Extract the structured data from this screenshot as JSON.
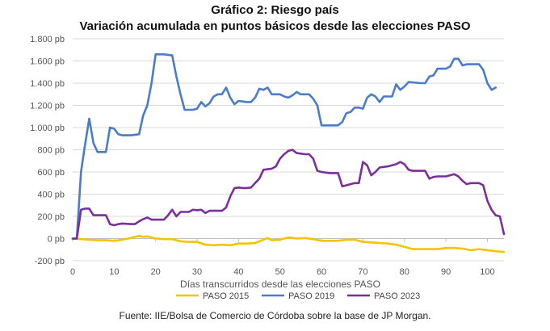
{
  "chart_data": {
    "type": "line",
    "title": "Gráfico 2: Riesgo país",
    "subtitle": "Variación acumulada en puntos básicos desde las elecciones PASO",
    "xlabel": "Días transcurridos desde las elecciones PASO",
    "ylabel": "",
    "xlim": [
      0,
      104
    ],
    "ylim": [
      -200,
      1800
    ],
    "x_ticks": [
      0,
      10,
      20,
      30,
      40,
      50,
      60,
      70,
      80,
      90,
      100
    ],
    "y_ticks": [
      -200,
      0,
      200,
      400,
      600,
      800,
      1000,
      1200,
      1400,
      1600,
      1800
    ],
    "y_tick_labels": [
      "-200 pb",
      "0 pb",
      "200 pb",
      "400 pb",
      "600 pb",
      "800 pb",
      "1.000 pb",
      "1.200 pb",
      "1.400 pb",
      "1.600 pb",
      "1.800 pb"
    ],
    "grid": true,
    "legend_position": "bottom",
    "series": [
      {
        "name": "PASO 2015",
        "color": "#f5c400",
        "points": [
          [
            0,
            0
          ],
          [
            2,
            -5
          ],
          [
            4,
            -10
          ],
          [
            6,
            -15
          ],
          [
            8,
            -15
          ],
          [
            10,
            -20
          ],
          [
            12,
            -10
          ],
          [
            14,
            5
          ],
          [
            16,
            25
          ],
          [
            17,
            15
          ],
          [
            18,
            20
          ],
          [
            20,
            0
          ],
          [
            22,
            -5
          ],
          [
            24,
            -5
          ],
          [
            26,
            -25
          ],
          [
            28,
            -30
          ],
          [
            30,
            -30
          ],
          [
            32,
            -55
          ],
          [
            34,
            -60
          ],
          [
            36,
            -55
          ],
          [
            38,
            -60
          ],
          [
            40,
            -45
          ],
          [
            42,
            -45
          ],
          [
            44,
            -40
          ],
          [
            46,
            -10
          ],
          [
            47,
            5
          ],
          [
            48,
            -15
          ],
          [
            50,
            -10
          ],
          [
            52,
            10
          ],
          [
            54,
            0
          ],
          [
            56,
            5
          ],
          [
            58,
            -5
          ],
          [
            60,
            -20
          ],
          [
            62,
            -20
          ],
          [
            64,
            -20
          ],
          [
            66,
            -10
          ],
          [
            68,
            -10
          ],
          [
            70,
            -30
          ],
          [
            72,
            -35
          ],
          [
            74,
            -40
          ],
          [
            76,
            -45
          ],
          [
            78,
            -55
          ],
          [
            80,
            -75
          ],
          [
            82,
            -95
          ],
          [
            84,
            -95
          ],
          [
            86,
            -95
          ],
          [
            88,
            -95
          ],
          [
            90,
            -85
          ],
          [
            92,
            -85
          ],
          [
            94,
            -90
          ],
          [
            96,
            -105
          ],
          [
            98,
            -95
          ],
          [
            100,
            -105
          ],
          [
            102,
            -115
          ],
          [
            104,
            -120
          ]
        ]
      },
      {
        "name": "PASO 2019",
        "color": "#4a7cc9",
        "points": [
          [
            0,
            0
          ],
          [
            1,
            0
          ],
          [
            2,
            600
          ],
          [
            3,
            850
          ],
          [
            4,
            1080
          ],
          [
            5,
            860
          ],
          [
            6,
            780
          ],
          [
            8,
            780
          ],
          [
            9,
            1000
          ],
          [
            10,
            990
          ],
          [
            11,
            940
          ],
          [
            12,
            930
          ],
          [
            14,
            930
          ],
          [
            16,
            940
          ],
          [
            17,
            1110
          ],
          [
            18,
            1200
          ],
          [
            19,
            1400
          ],
          [
            20,
            1660
          ],
          [
            22,
            1660
          ],
          [
            24,
            1650
          ],
          [
            25,
            1460
          ],
          [
            26,
            1300
          ],
          [
            27,
            1160
          ],
          [
            29,
            1160
          ],
          [
            30,
            1170
          ],
          [
            31,
            1230
          ],
          [
            32,
            1190
          ],
          [
            33,
            1220
          ],
          [
            34,
            1280
          ],
          [
            35,
            1300
          ],
          [
            36,
            1300
          ],
          [
            37,
            1360
          ],
          [
            38,
            1270
          ],
          [
            39,
            1210
          ],
          [
            40,
            1240
          ],
          [
            42,
            1230
          ],
          [
            43,
            1230
          ],
          [
            44,
            1270
          ],
          [
            45,
            1350
          ],
          [
            46,
            1340
          ],
          [
            47,
            1360
          ],
          [
            48,
            1300
          ],
          [
            50,
            1300
          ],
          [
            51,
            1280
          ],
          [
            52,
            1270
          ],
          [
            53,
            1290
          ],
          [
            54,
            1320
          ],
          [
            55,
            1300
          ],
          [
            57,
            1300
          ],
          [
            58,
            1260
          ],
          [
            59,
            1200
          ],
          [
            60,
            1020
          ],
          [
            63,
            1020
          ],
          [
            64,
            1020
          ],
          [
            65,
            1050
          ],
          [
            66,
            1130
          ],
          [
            67,
            1140
          ],
          [
            68,
            1180
          ],
          [
            69,
            1180
          ],
          [
            70,
            1170
          ],
          [
            71,
            1270
          ],
          [
            72,
            1300
          ],
          [
            73,
            1280
          ],
          [
            74,
            1230
          ],
          [
            75,
            1280
          ],
          [
            76,
            1280
          ],
          [
            77,
            1280
          ],
          [
            78,
            1390
          ],
          [
            79,
            1340
          ],
          [
            80,
            1370
          ],
          [
            81,
            1410
          ],
          [
            84,
            1400
          ],
          [
            85,
            1400
          ],
          [
            86,
            1460
          ],
          [
            87,
            1470
          ],
          [
            88,
            1530
          ],
          [
            90,
            1530
          ],
          [
            91,
            1550
          ],
          [
            92,
            1620
          ],
          [
            93,
            1620
          ],
          [
            94,
            1560
          ],
          [
            95,
            1570
          ],
          [
            97,
            1570
          ],
          [
            98,
            1570
          ],
          [
            99,
            1520
          ],
          [
            100,
            1400
          ],
          [
            101,
            1340
          ],
          [
            102,
            1360
          ]
        ]
      },
      {
        "name": "PASO 2023",
        "color": "#7b2f9c",
        "points": [
          [
            0,
            0
          ],
          [
            1,
            0
          ],
          [
            2,
            260
          ],
          [
            3,
            270
          ],
          [
            4,
            270
          ],
          [
            5,
            210
          ],
          [
            6,
            210
          ],
          [
            8,
            210
          ],
          [
            9,
            130
          ],
          [
            10,
            120
          ],
          [
            11,
            130
          ],
          [
            12,
            135
          ],
          [
            14,
            130
          ],
          [
            15,
            130
          ],
          [
            16,
            155
          ],
          [
            17,
            175
          ],
          [
            18,
            190
          ],
          [
            19,
            170
          ],
          [
            20,
            170
          ],
          [
            22,
            170
          ],
          [
            23,
            210
          ],
          [
            24,
            260
          ],
          [
            25,
            200
          ],
          [
            26,
            240
          ],
          [
            28,
            240
          ],
          [
            29,
            260
          ],
          [
            30,
            255
          ],
          [
            31,
            260
          ],
          [
            32,
            230
          ],
          [
            33,
            250
          ],
          [
            34,
            250
          ],
          [
            36,
            250
          ],
          [
            37,
            280
          ],
          [
            38,
            380
          ],
          [
            39,
            455
          ],
          [
            40,
            460
          ],
          [
            41,
            455
          ],
          [
            42,
            455
          ],
          [
            43,
            460
          ],
          [
            44,
            500
          ],
          [
            45,
            540
          ],
          [
            46,
            620
          ],
          [
            48,
            630
          ],
          [
            49,
            650
          ],
          [
            50,
            720
          ],
          [
            51,
            760
          ],
          [
            52,
            790
          ],
          [
            53,
            800
          ],
          [
            54,
            770
          ],
          [
            56,
            760
          ],
          [
            57,
            760
          ],
          [
            58,
            720
          ],
          [
            59,
            610
          ],
          [
            60,
            600
          ],
          [
            62,
            590
          ],
          [
            64,
            590
          ],
          [
            65,
            470
          ],
          [
            66,
            480
          ],
          [
            67,
            490
          ],
          [
            68,
            500
          ],
          [
            69,
            500
          ],
          [
            70,
            690
          ],
          [
            71,
            660
          ],
          [
            72,
            570
          ],
          [
            73,
            600
          ],
          [
            74,
            640
          ],
          [
            76,
            650
          ],
          [
            77,
            660
          ],
          [
            78,
            670
          ],
          [
            79,
            690
          ],
          [
            80,
            670
          ],
          [
            81,
            620
          ],
          [
            82,
            610
          ],
          [
            84,
            610
          ],
          [
            85,
            610
          ],
          [
            86,
            540
          ],
          [
            87,
            555
          ],
          [
            88,
            560
          ],
          [
            90,
            560
          ],
          [
            91,
            570
          ],
          [
            92,
            580
          ],
          [
            93,
            560
          ],
          [
            94,
            520
          ],
          [
            95,
            490
          ],
          [
            96,
            500
          ],
          [
            98,
            500
          ],
          [
            99,
            480
          ],
          [
            100,
            340
          ],
          [
            101,
            260
          ],
          [
            102,
            210
          ],
          [
            103,
            200
          ],
          [
            104,
            40
          ]
        ]
      }
    ]
  },
  "footer": "Fuente: IIE/Bolsa de Comercio de Córdoba sobre la base de JP Morgan."
}
